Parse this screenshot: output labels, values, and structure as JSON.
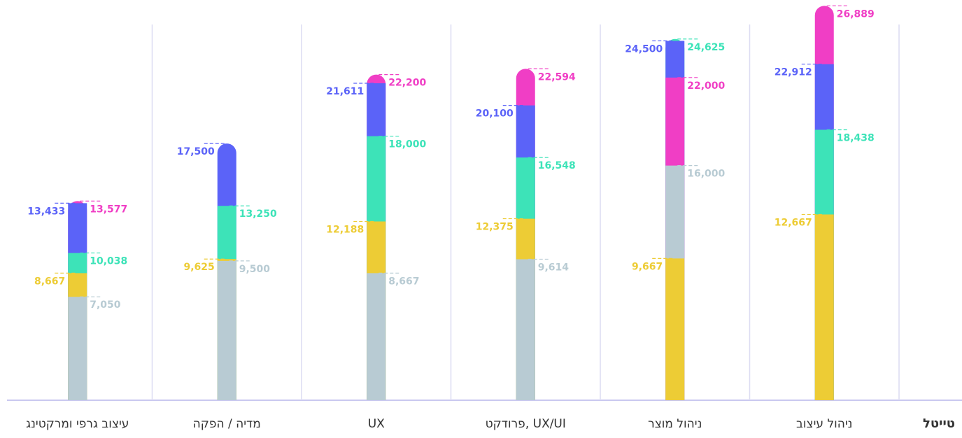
{
  "chart_data": {
    "type": "overlap-bar",
    "title": "טייטל",
    "categories": [
      "ניהול עיצוב",
      "ניהול מוצר",
      "פרודקט, UX/UI",
      "UX",
      "מדיה / הפקה",
      "עיצוב גרפי ומרקטינג"
    ],
    "series": [
      {
        "color": "#b8cbd3",
        "values": [
          null,
          16000,
          9614,
          8667,
          9500,
          7050
        ],
        "value_labels": [
          null,
          "16,000",
          "9,614",
          "8,667",
          "9,500",
          "7,050"
        ]
      },
      {
        "color": "#edcc35",
        "values": [
          12667,
          9667,
          12375,
          12188,
          9625,
          8667
        ],
        "value_labels": [
          "12,667",
          "9,667",
          "12,375",
          "12,188",
          "9,625",
          "8,667"
        ]
      },
      {
        "color": "#3de3b8",
        "values": [
          18438,
          24625,
          16548,
          18000,
          13250,
          10038
        ],
        "value_labels": [
          "18,438",
          "24,625",
          "16,548",
          "18,000",
          "13,250",
          "10,038"
        ]
      },
      {
        "color": "#5b63f8",
        "values": [
          22912,
          24500,
          20100,
          21611,
          17500,
          13433
        ],
        "value_labels": [
          "22,912",
          "24,500",
          "20,100",
          "21,611",
          "17,500",
          "13,433"
        ]
      },
      {
        "color": "#f03ec5",
        "values": [
          26889,
          22000,
          22594,
          22200,
          null,
          13577
        ],
        "value_labels": [
          "26,889",
          "22,000",
          "22,594",
          "22,200",
          null,
          "13,577"
        ]
      }
    ],
    "ylim": [
      0,
      27000
    ]
  }
}
